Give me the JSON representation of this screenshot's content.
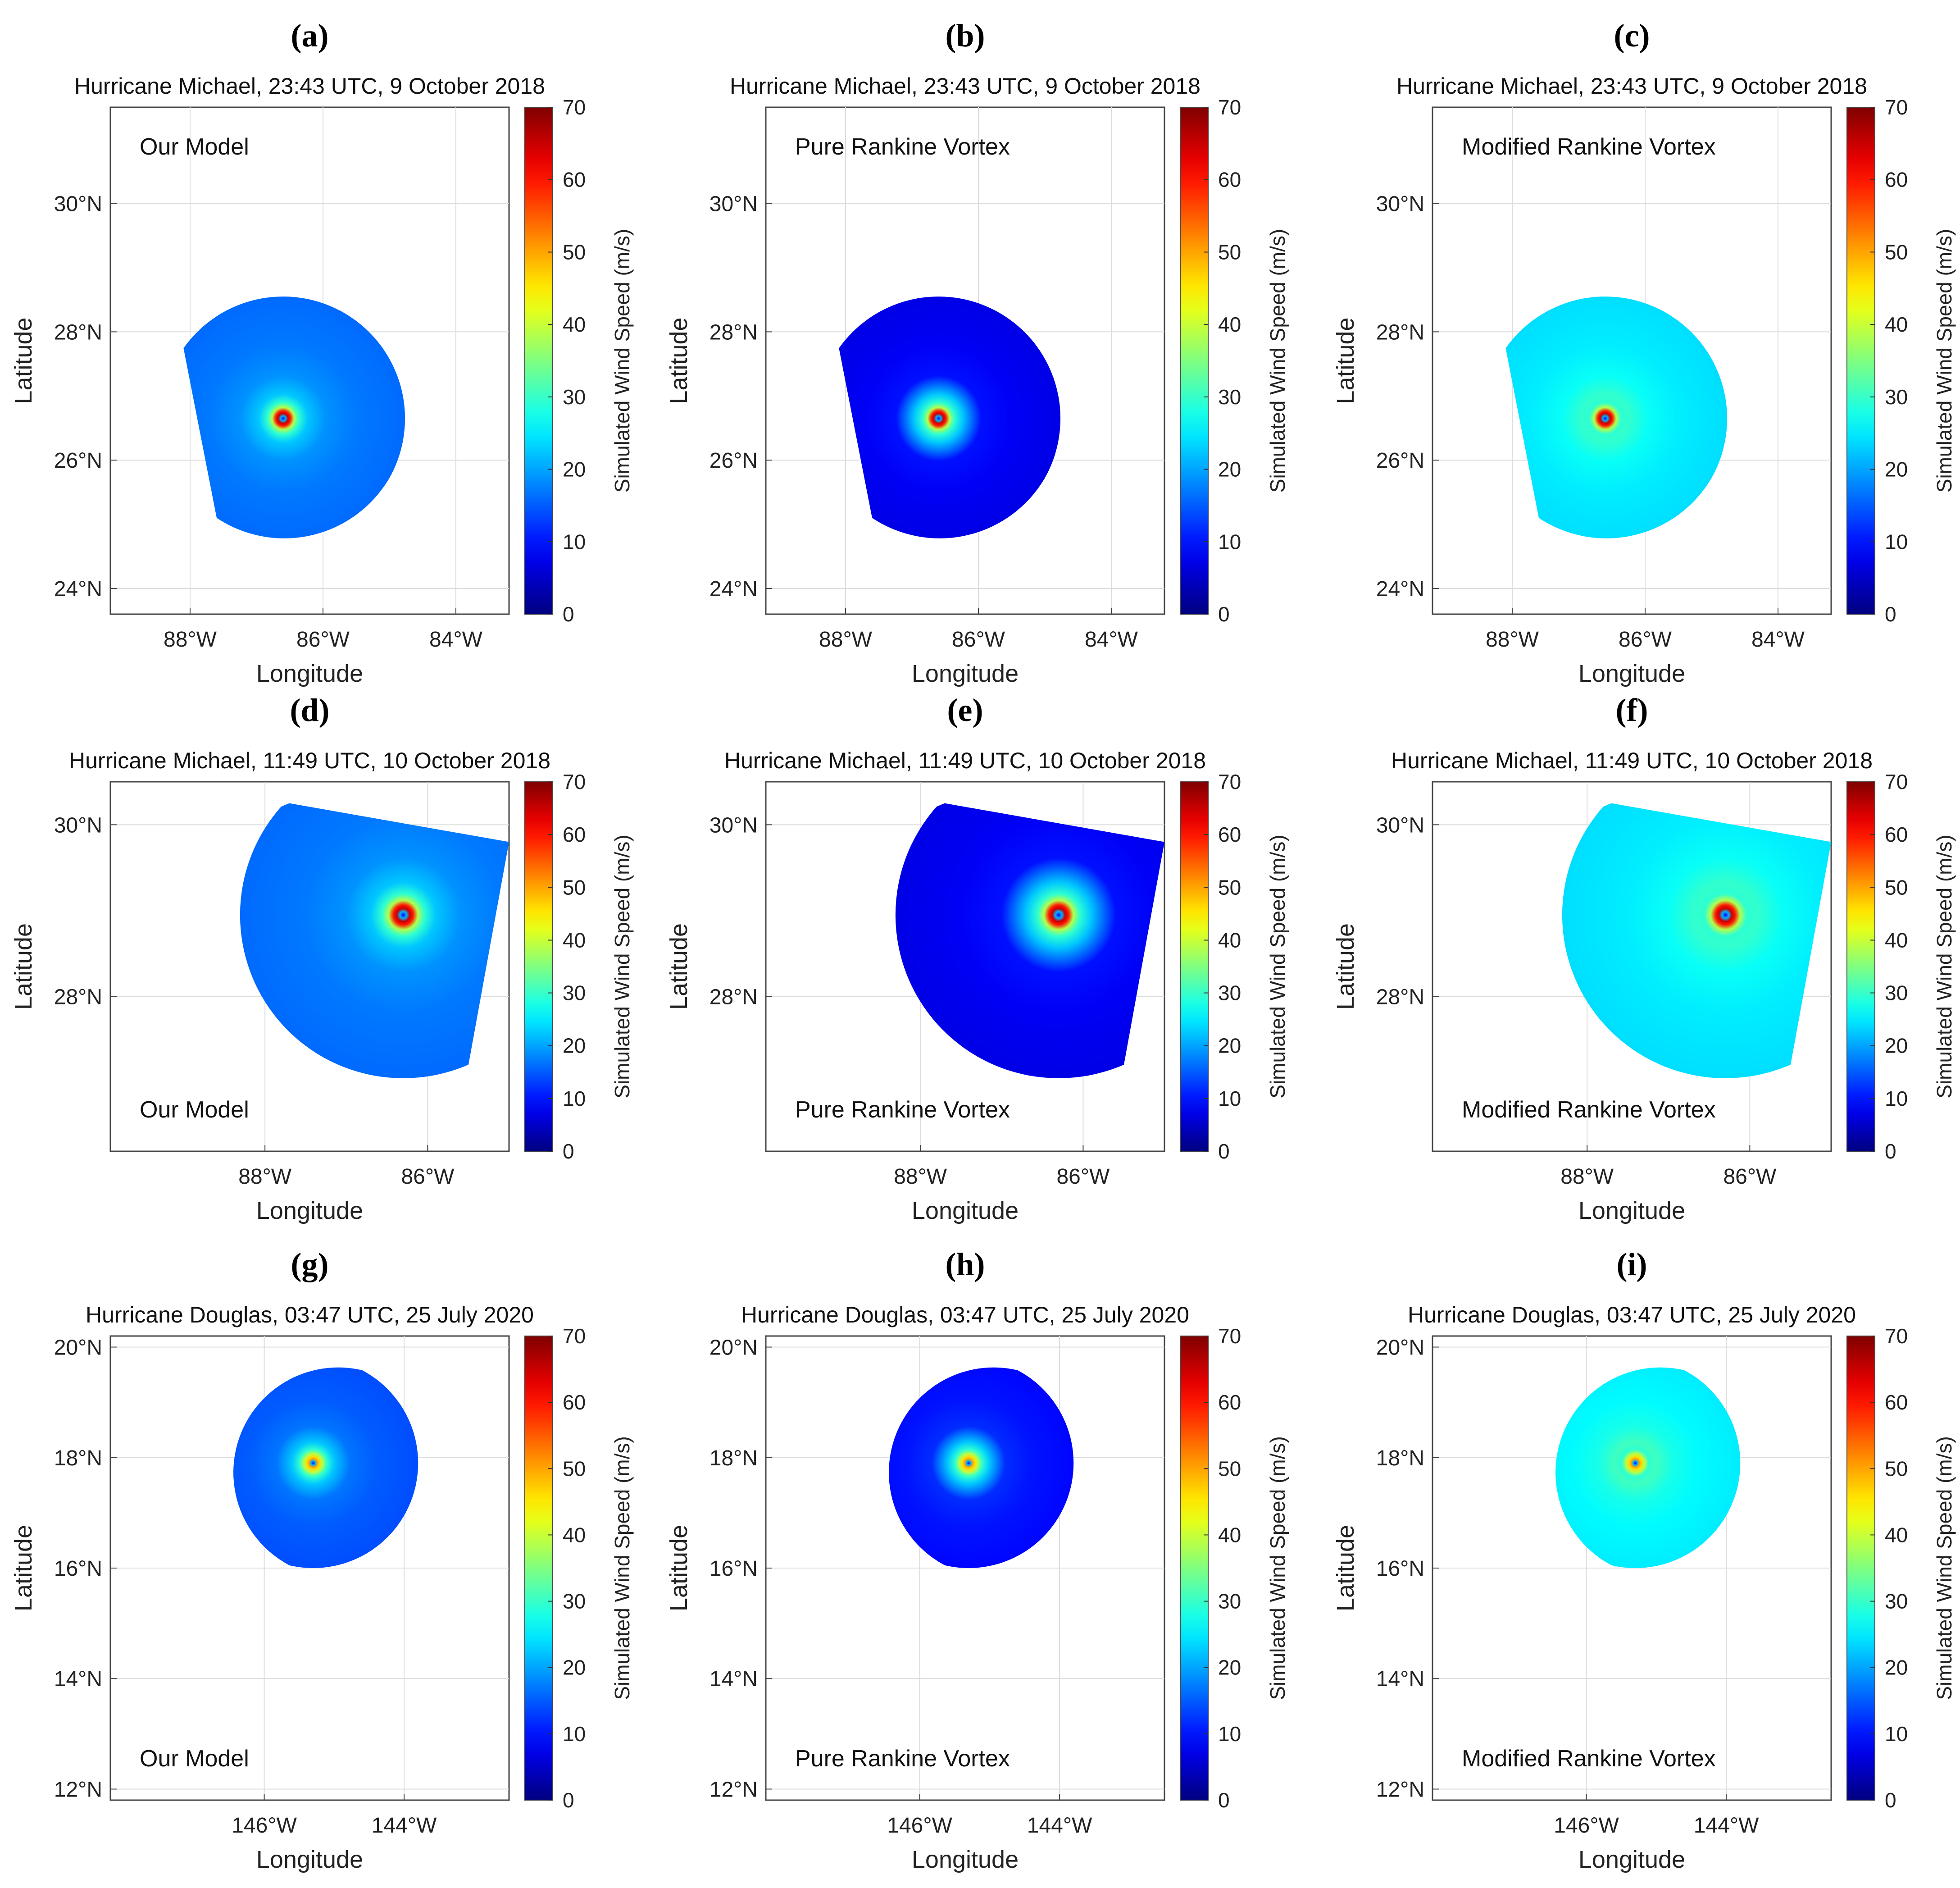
{
  "colorbar": {
    "label": "Simulated Wind Speed (m/s)",
    "ticks": [
      0,
      10,
      20,
      30,
      40,
      50,
      60,
      70
    ],
    "colormap": "jet",
    "colormap_stops": [
      "#00008f",
      "#0000ff",
      "#00ffff",
      "#ffff00",
      "#ff0000",
      "#800000"
    ]
  },
  "chart_data": [
    {
      "letter": "(a)",
      "type": "heatmap",
      "title": "Hurricane Michael, 23:43 UTC, 9 October 2018",
      "annotation": "Our Model",
      "annotation_pos": "top-left",
      "xlabel": "Longitude",
      "ylabel": "Latitude",
      "xlim": [
        -89.2,
        -83.2
      ],
      "ylim": [
        23.6,
        31.5
      ],
      "xticks": [
        -88,
        -86,
        -84
      ],
      "xtick_labels": [
        "88°W",
        "86°W",
        "84°W"
      ],
      "yticks": [
        24,
        26,
        28,
        30
      ],
      "ytick_labels": [
        "24°N",
        "26°N",
        "28°N",
        "30°N"
      ],
      "center": [
        -86.6,
        26.65
      ],
      "outer_speed": 16,
      "peak_speed": 65,
      "footprint": [
        [
          -88.1,
          27.75
        ],
        [
          -87.6,
          25.1
        ]
      ]
    },
    {
      "letter": "(b)",
      "type": "heatmap",
      "title": "Hurricane Michael, 23:43 UTC, 9 October 2018",
      "annotation": "Pure Rankine Vortex",
      "annotation_pos": "top-left",
      "xlabel": "Longitude",
      "ylabel": "Latitude",
      "xlim": [
        -89.2,
        -83.2
      ],
      "ylim": [
        23.6,
        31.5
      ],
      "xticks": [
        -88,
        -86,
        -84
      ],
      "xtick_labels": [
        "88°W",
        "86°W",
        "84°W"
      ],
      "yticks": [
        24,
        26,
        28,
        30
      ],
      "ytick_labels": [
        "24°N",
        "26°N",
        "28°N",
        "30°N"
      ],
      "center": [
        -86.6,
        26.65
      ],
      "outer_speed": 7,
      "peak_speed": 65,
      "footprint": [
        [
          -88.1,
          27.75
        ],
        [
          -87.6,
          25.1
        ]
      ]
    },
    {
      "letter": "(c)",
      "type": "heatmap",
      "title": "Hurricane Michael, 23:43 UTC, 9 October 2018",
      "annotation": "Modified Rankine Vortex",
      "annotation_pos": "top-left",
      "xlabel": "Longitude",
      "ylabel": "Latitude",
      "xlim": [
        -89.2,
        -83.2
      ],
      "ylim": [
        23.6,
        31.5
      ],
      "xticks": [
        -88,
        -86,
        -84
      ],
      "xtick_labels": [
        "88°W",
        "86°W",
        "84°W"
      ],
      "yticks": [
        24,
        26,
        28,
        30
      ],
      "ytick_labels": [
        "24°N",
        "26°N",
        "28°N",
        "30°N"
      ],
      "center": [
        -86.6,
        26.65
      ],
      "outer_speed": 24,
      "peak_speed": 65,
      "footprint": [
        [
          -88.1,
          27.75
        ],
        [
          -87.6,
          25.1
        ]
      ]
    },
    {
      "letter": "(d)",
      "type": "heatmap",
      "title": "Hurricane Michael, 11:49 UTC, 10 October 2018",
      "annotation": "Our Model",
      "annotation_pos": "bottom-left",
      "xlabel": "Longitude",
      "ylabel": "Latitude",
      "xlim": [
        -89.9,
        -85.0
      ],
      "ylim": [
        26.2,
        30.5
      ],
      "xticks": [
        -88,
        -86
      ],
      "xtick_labels": [
        "88°W",
        "86°W"
      ],
      "yticks": [
        28,
        30
      ],
      "ytick_labels": [
        "28°N",
        "30°N"
      ],
      "center": [
        -86.3,
        28.95
      ],
      "outer_speed": 16,
      "peak_speed": 65,
      "footprint": [
        [
          -87.7,
          30.25
        ],
        [
          -85.0,
          29.8
        ],
        [
          -85.5,
          27.2
        ]
      ]
    },
    {
      "letter": "(e)",
      "type": "heatmap",
      "title": "Hurricane Michael, 11:49 UTC, 10 October 2018",
      "annotation": "Pure Rankine Vortex",
      "annotation_pos": "bottom-left",
      "xlabel": "Longitude",
      "ylabel": "Latitude",
      "xlim": [
        -89.9,
        -85.0
      ],
      "ylim": [
        26.2,
        30.5
      ],
      "xticks": [
        -88,
        -86
      ],
      "xtick_labels": [
        "88°W",
        "86°W"
      ],
      "yticks": [
        28,
        30
      ],
      "ytick_labels": [
        "28°N",
        "30°N"
      ],
      "center": [
        -86.3,
        28.95
      ],
      "outer_speed": 7,
      "peak_speed": 65,
      "footprint": [
        [
          -87.7,
          30.25
        ],
        [
          -85.0,
          29.8
        ],
        [
          -85.5,
          27.2
        ]
      ]
    },
    {
      "letter": "(f)",
      "type": "heatmap",
      "title": "Hurricane Michael, 11:49 UTC, 10 October 2018",
      "annotation": "Modified Rankine Vortex",
      "annotation_pos": "bottom-left",
      "xlabel": "Longitude",
      "ylabel": "Latitude",
      "xlim": [
        -89.9,
        -85.0
      ],
      "ylim": [
        26.2,
        30.5
      ],
      "xticks": [
        -88,
        -86
      ],
      "xtick_labels": [
        "88°W",
        "86°W"
      ],
      "yticks": [
        28,
        30
      ],
      "ytick_labels": [
        "28°N",
        "30°N"
      ],
      "center": [
        -86.3,
        28.95
      ],
      "outer_speed": 24,
      "peak_speed": 65,
      "footprint": [
        [
          -87.7,
          30.25
        ],
        [
          -85.0,
          29.8
        ],
        [
          -85.5,
          27.2
        ]
      ]
    },
    {
      "letter": "(g)",
      "type": "heatmap",
      "title": "Hurricane Douglas, 03:47 UTC, 25 July 2020",
      "annotation": "Our Model",
      "annotation_pos": "bottom-left",
      "xlabel": "Longitude",
      "ylabel": "Latitude",
      "xlim": [
        -148.2,
        -142.5
      ],
      "ylim": [
        11.8,
        20.2
      ],
      "xticks": [
        -146,
        -144
      ],
      "xtick_labels": [
        "146°W",
        "144°W"
      ],
      "yticks": [
        12,
        14,
        16,
        18,
        20
      ],
      "ytick_labels": [
        "12°N",
        "14°N",
        "16°N",
        "18°N",
        "20°N"
      ],
      "center": [
        -145.3,
        17.9
      ],
      "outer_speed": 14,
      "peak_speed": 50,
      "footprint": [
        [
          -143.9,
          19.1
        ],
        [
          -143.5,
          17.2
        ]
      ]
    },
    {
      "letter": "(h)",
      "type": "heatmap",
      "title": "Hurricane Douglas, 03:47 UTC, 25 July 2020",
      "annotation": "Pure Rankine Vortex",
      "annotation_pos": "bottom-left",
      "xlabel": "Longitude",
      "ylabel": "Latitude",
      "xlim": [
        -148.2,
        -142.5
      ],
      "ylim": [
        11.8,
        20.2
      ],
      "xticks": [
        -146,
        -144
      ],
      "xtick_labels": [
        "146°W",
        "144°W"
      ],
      "yticks": [
        12,
        14,
        16,
        18,
        20
      ],
      "ytick_labels": [
        "12°N",
        "14°N",
        "16°N",
        "18°N",
        "20°N"
      ],
      "center": [
        -145.3,
        17.9
      ],
      "outer_speed": 9,
      "peak_speed": 50,
      "footprint": [
        [
          -143.9,
          19.1
        ],
        [
          -143.5,
          17.2
        ]
      ]
    },
    {
      "letter": "(i)",
      "type": "heatmap",
      "title": "Hurricane Douglas, 03:47 UTC, 25 July 2020",
      "annotation": "Modified Rankine Vortex",
      "annotation_pos": "bottom-left",
      "xlabel": "Longitude",
      "ylabel": "Latitude",
      "xlim": [
        -148.2,
        -142.5
      ],
      "ylim": [
        11.8,
        20.2
      ],
      "xticks": [
        -146,
        -144
      ],
      "xtick_labels": [
        "146°W",
        "144°W"
      ],
      "yticks": [
        12,
        14,
        16,
        18,
        20
      ],
      "ytick_labels": [
        "12°N",
        "14°N",
        "16°N",
        "18°N",
        "20°N"
      ],
      "center": [
        -145.3,
        17.9
      ],
      "outer_speed": 25,
      "peak_speed": 50,
      "footprint": [
        [
          -143.9,
          19.1
        ],
        [
          -143.5,
          17.2
        ]
      ]
    }
  ]
}
